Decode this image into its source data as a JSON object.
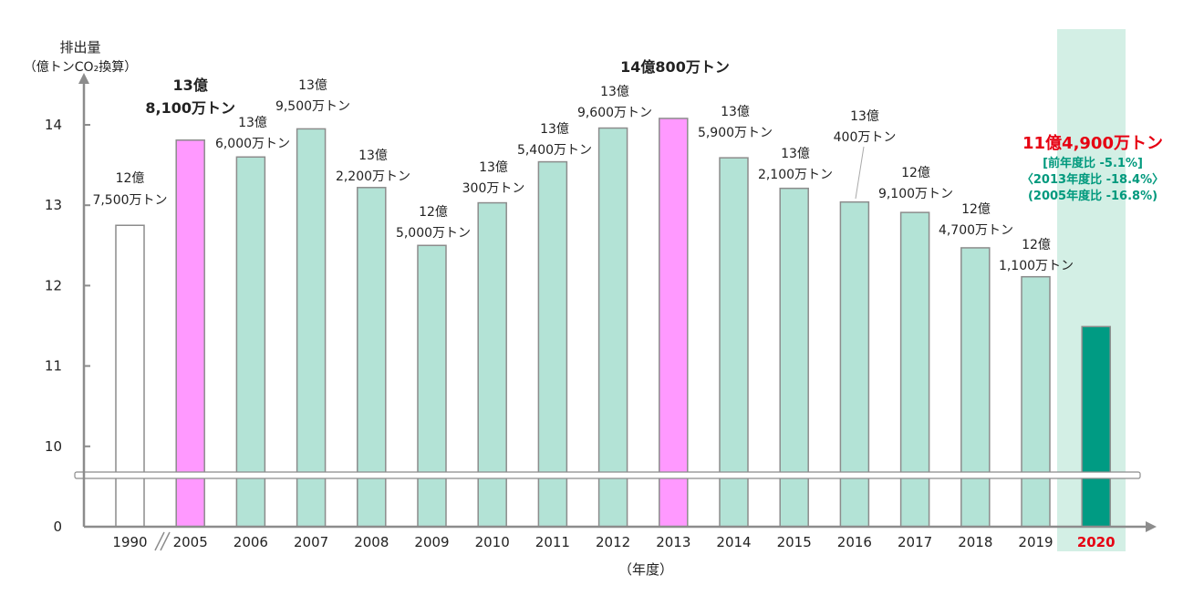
{
  "chart_data": {
    "type": "bar",
    "ylabel": "排出量",
    "ylabel_unit": "（億トンCO₂換算）",
    "xlabel": "（年度）",
    "y_ticks": [
      "0",
      "10",
      "11",
      "12",
      "13",
      "14"
    ],
    "axis_break": true,
    "grid": false,
    "categories": [
      "1990",
      "2005",
      "2006",
      "2007",
      "2008",
      "2009",
      "2010",
      "2011",
      "2012",
      "2013",
      "2014",
      "2015",
      "2016",
      "2017",
      "2018",
      "2019",
      "2020"
    ],
    "values": [
      12.75,
      13.81,
      13.6,
      13.95,
      13.22,
      12.5,
      13.03,
      13.54,
      13.96,
      14.08,
      13.59,
      13.21,
      13.04,
      12.91,
      12.47,
      12.11,
      11.49
    ],
    "bar_labels": [
      [
        "12億",
        "7,500万トン"
      ],
      [
        "13億",
        "8,100万トン"
      ],
      [
        "13億",
        "6,000万トン"
      ],
      [
        "13億",
        "9,500万トン"
      ],
      [
        "13億",
        "2,200万トン"
      ],
      [
        "12億",
        "5,000万トン"
      ],
      [
        "13億",
        "300万トン"
      ],
      [
        "13億",
        "5,400万トン"
      ],
      [
        "13億",
        "9,600万トン"
      ],
      [
        "14億800万トン"
      ],
      [
        "13億",
        "5,900万トン"
      ],
      [
        "13億",
        "2,100万トン"
      ],
      [
        "13億",
        "400万トン"
      ],
      [
        "12億",
        "9,100万トン"
      ],
      [
        "12億",
        "4,700万トン"
      ],
      [
        "12億",
        "1,100万トン"
      ],
      [
        "11億4,900万トン"
      ]
    ],
    "annotations_2020": [
      "[前年度比 -5.1%]",
      "〈2013年度比 -18.4%〉",
      "(2005年度比 -16.8%)"
    ],
    "colors": {
      "base_year_fill": "#ffffff",
      "highlight_fill": "#ff99ff",
      "normal_fill": "#b3e3d6",
      "latest_fill": "#009b83",
      "latest_band": "#d3efe5",
      "bar_stroke": "#8c8c8c",
      "axis": "#8c8c8c",
      "red_text": "#e60012",
      "teal_text": "#00997d"
    }
  }
}
